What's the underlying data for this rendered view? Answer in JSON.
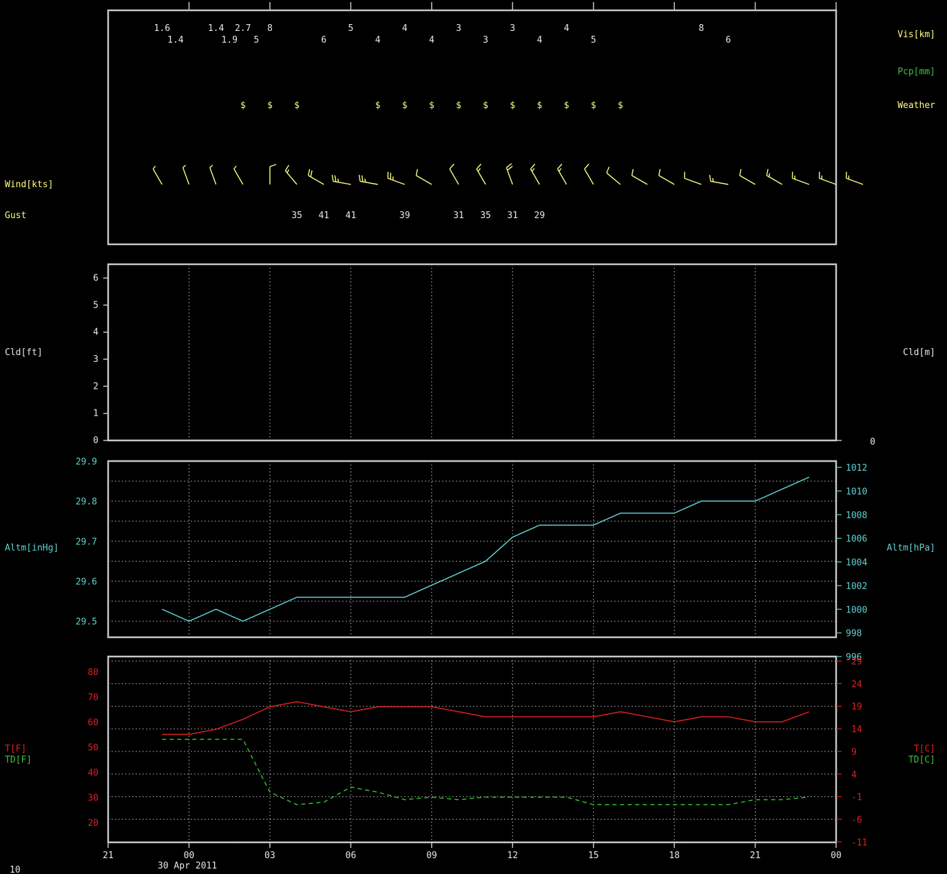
{
  "colors": {
    "frame": "#c8c8c8",
    "grid": "#c8c8c8",
    "text_white": "#e8e8e8",
    "yellow": "#ffff80",
    "green": "#40c040",
    "cyan": "#60d0d0",
    "red": "#e02020",
    "dew": "#30c030"
  },
  "bottom": {
    "date_label": "30 Apr 2011",
    "corner_label": "10"
  },
  "chart_data": [
    {
      "type": "table",
      "panel": "surface-observations",
      "labels": {
        "vis": "Vis[km]",
        "pcp": "Pcp[mm]",
        "weather": "Weather",
        "wind": "Wind[kts]",
        "gust": "Gust"
      },
      "x_domain_hours": [
        -3,
        24
      ],
      "visibility_km": [
        {
          "t": -1,
          "v": "1.6"
        },
        {
          "t": -0.5,
          "v": "1.4"
        },
        {
          "t": 1,
          "v": "1.4"
        },
        {
          "t": 1.5,
          "v": "1.9"
        },
        {
          "t": 2,
          "v": "2.7"
        },
        {
          "t": 2.5,
          "v": "5"
        },
        {
          "t": 3,
          "v": "8"
        },
        {
          "t": 5,
          "v": "6"
        },
        {
          "t": 6,
          "v": "5"
        },
        {
          "t": 7,
          "v": "4"
        },
        {
          "t": 8,
          "v": "4"
        },
        {
          "t": 9,
          "v": "4"
        },
        {
          "t": 10,
          "v": "3"
        },
        {
          "t": 11,
          "v": "3"
        },
        {
          "t": 12,
          "v": "3"
        },
        {
          "t": 13,
          "v": "4"
        },
        {
          "t": 14,
          "v": "4"
        },
        {
          "t": 15,
          "v": "5"
        },
        {
          "t": 19,
          "v": "8"
        },
        {
          "t": 20,
          "v": "6"
        }
      ],
      "weather_hours": [
        2,
        3,
        4,
        7,
        8,
        9,
        10,
        11,
        12,
        13,
        14,
        15,
        16
      ],
      "weather_symbol": "$",
      "wind": [
        {
          "t": -1,
          "dir": 330,
          "kts": 5
        },
        {
          "t": 0,
          "dir": 340,
          "kts": 5
        },
        {
          "t": 1,
          "dir": 340,
          "kts": 5
        },
        {
          "t": 2,
          "dir": 330,
          "kts": 5
        },
        {
          "t": 3,
          "dir": 360,
          "kts": 10
        },
        {
          "t": 4,
          "dir": 320,
          "kts": 15
        },
        {
          "t": 5,
          "dir": 300,
          "kts": 20
        },
        {
          "t": 6,
          "dir": 280,
          "kts": 25
        },
        {
          "t": 7,
          "dir": 280,
          "kts": 25
        },
        {
          "t": 8,
          "dir": 290,
          "kts": 25
        },
        {
          "t": 9,
          "dir": 300,
          "kts": 10
        },
        {
          "t": 10,
          "dir": 330,
          "kts": 10
        },
        {
          "t": 11,
          "dir": 330,
          "kts": 15
        },
        {
          "t": 12,
          "dir": 340,
          "kts": 20
        },
        {
          "t": 13,
          "dir": 330,
          "kts": 15
        },
        {
          "t": 14,
          "dir": 330,
          "kts": 15
        },
        {
          "t": 15,
          "dir": 330,
          "kts": 10
        },
        {
          "t": 16,
          "dir": 310,
          "kts": 10
        },
        {
          "t": 17,
          "dir": 300,
          "kts": 10
        },
        {
          "t": 18,
          "dir": 300,
          "kts": 10
        },
        {
          "t": 19,
          "dir": 290,
          "kts": 10
        },
        {
          "t": 20,
          "dir": 280,
          "kts": 15
        },
        {
          "t": 21,
          "dir": 300,
          "kts": 10
        },
        {
          "t": 22,
          "dir": 300,
          "kts": 15
        },
        {
          "t": 23,
          "dir": 290,
          "kts": 15
        },
        {
          "t": 24,
          "dir": 290,
          "kts": 15
        },
        {
          "t": 25,
          "dir": 290,
          "kts": 15
        }
      ],
      "gust": [
        {
          "t": 4,
          "v": "35"
        },
        {
          "t": 5,
          "v": "41"
        },
        {
          "t": 6,
          "v": "41"
        },
        {
          "t": 8,
          "v": "39"
        },
        {
          "t": 10,
          "v": "31"
        },
        {
          "t": 11,
          "v": "35"
        },
        {
          "t": 12,
          "v": "31"
        },
        {
          "t": 13,
          "v": "29"
        }
      ]
    },
    {
      "type": "scatter",
      "panel": "cloud",
      "ylabel_left": "Cld[ft]",
      "ylabel_right": "Cld[m]",
      "ylim": [
        0,
        6
      ],
      "yticks": [
        "0",
        "1",
        "2",
        "3",
        "4",
        "5",
        "6"
      ],
      "right_tick_label": "0",
      "x_domain_hours": [
        -3,
        24
      ],
      "points": []
    },
    {
      "type": "line",
      "panel": "altimeter",
      "ylabel_left": "Altm[inHg]",
      "ylabel_right": "Altm[hPa]",
      "ylim": [
        29.46,
        29.9
      ],
      "yticks_left": [
        "29.5",
        "29.6",
        "29.7",
        "29.8",
        "29.9"
      ],
      "yticks_right": [
        "996",
        "998",
        "1000",
        "1002",
        "1004",
        "1006",
        "1008",
        "1010",
        "1012"
      ],
      "x_domain_hours": [
        -3,
        24
      ],
      "x": [
        -1,
        0,
        1,
        2,
        3,
        4,
        5,
        6,
        7,
        8,
        9,
        10,
        11,
        12,
        13,
        14,
        15,
        16,
        17,
        18,
        19,
        20,
        21,
        22,
        23
      ],
      "values": [
        29.53,
        29.5,
        29.53,
        29.5,
        29.53,
        29.56,
        29.56,
        29.56,
        29.56,
        29.56,
        29.59,
        29.62,
        29.65,
        29.71,
        29.74,
        29.74,
        29.74,
        29.77,
        29.77,
        29.77,
        29.8,
        29.8,
        29.8,
        29.83,
        29.86
      ]
    },
    {
      "type": "line",
      "panel": "temperature",
      "ylabel_left": [
        "T[F]",
        "TD[F]"
      ],
      "ylabel_right": [
        "T[C]",
        "TD[C]"
      ],
      "ylim": [
        12,
        86
      ],
      "yticks_left": [
        "20",
        "30",
        "40",
        "50",
        "60",
        "70",
        "80"
      ],
      "yticks_right": [
        "-11",
        "-6",
        "-1",
        "4",
        "9",
        "14",
        "19",
        "24",
        "29"
      ],
      "xticks": [
        "21",
        "00",
        "03",
        "06",
        "09",
        "12",
        "15",
        "18",
        "21",
        "00"
      ],
      "x_domain_hours": [
        -3,
        24
      ],
      "x": [
        -1,
        0,
        1,
        2,
        3,
        4,
        5,
        6,
        7,
        8,
        9,
        10,
        11,
        12,
        13,
        14,
        15,
        16,
        17,
        18,
        19,
        20,
        21,
        22,
        23
      ],
      "series": [
        {
          "key": "t",
          "values": [
            55,
            55,
            57,
            61,
            66,
            68,
            66,
            64,
            66,
            66,
            66,
            64,
            62,
            62,
            62,
            62,
            62,
            64,
            62,
            60,
            62,
            62,
            60,
            60,
            64
          ]
        },
        {
          "key": "td",
          "values": [
            53,
            53,
            53,
            53,
            32,
            27,
            28,
            34,
            32,
            29,
            30,
            29,
            30,
            30,
            30,
            30,
            27,
            27,
            27,
            27,
            27,
            27,
            29,
            29,
            30
          ]
        }
      ]
    }
  ]
}
